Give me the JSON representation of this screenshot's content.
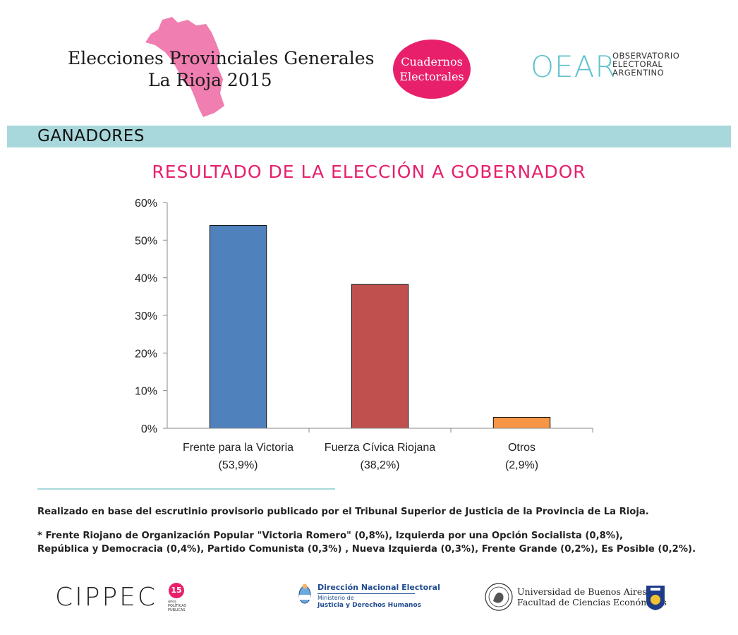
{
  "header": {
    "title_line1": "Elecciones Provinciales Generales",
    "title_line2": "La Rioja 2015",
    "map_color": "#f07eb0",
    "badge_line1": "Cuadernos",
    "badge_line2": "Electorales",
    "badge_color": "#e8206c",
    "oear_logo": "OEAR",
    "oear_sub1": "OBSERVATORIO",
    "oear_sub2": "ELECTORAL",
    "oear_sub3": "ARGENTINO"
  },
  "section": {
    "label": "GANADORES",
    "band_color": "#a8d8dc"
  },
  "chart_data": {
    "type": "bar",
    "title": "RESULTADO DE LA ELECCIÓN A GOBERNADOR",
    "categories": [
      "Frente para la Victoria",
      "Fuerza Cívica Riojana",
      "Otros"
    ],
    "category_sublabels": [
      "(53,9%)",
      "(38,2%)",
      "(2,9%)"
    ],
    "values": [
      53.9,
      38.2,
      2.9
    ],
    "colors": [
      "#4f81bd",
      "#c0504d",
      "#f79646"
    ],
    "ylim": [
      0,
      60
    ],
    "yticks": [
      0,
      10,
      20,
      30,
      40,
      50,
      60
    ],
    "ytick_labels": [
      "0%",
      "10%",
      "20%",
      "30%",
      "40%",
      "50%",
      "60%"
    ],
    "xlabel": "",
    "ylabel": "",
    "grid": false,
    "legend": "none"
  },
  "notes": {
    "source": "Realizado en base del escrutinio provisorio publicado por el Tribunal Superior de Justicia de la Provincia de La Rioja.",
    "footnote_line1": "* Frente Riojano de Organización Popular \"Victoria Romero\" (0,8%), Izquierda por una Opción Socialista (0,8%),",
    "footnote_line2": "República y Democracia (0,4%), Partido Comunista (0,3%)  , Nueva Izquierda (0,3%), Frente Grande (0,2%), Es Posible (0,2%)."
  },
  "footer": {
    "cippec": "CIPPEC",
    "cippec_badge": "15",
    "cippec_sub": "años POLÍTICAS PÚBLICAS",
    "dne_title": "Dirección Nacional Electoral",
    "dne_sub1": "Ministerio de",
    "dne_sub2": "Justicia y Derechos Humanos",
    "uba_line1": "Universidad de Buenos Aires",
    "uba_line2": "Facultad de Ciencias Económicas"
  }
}
